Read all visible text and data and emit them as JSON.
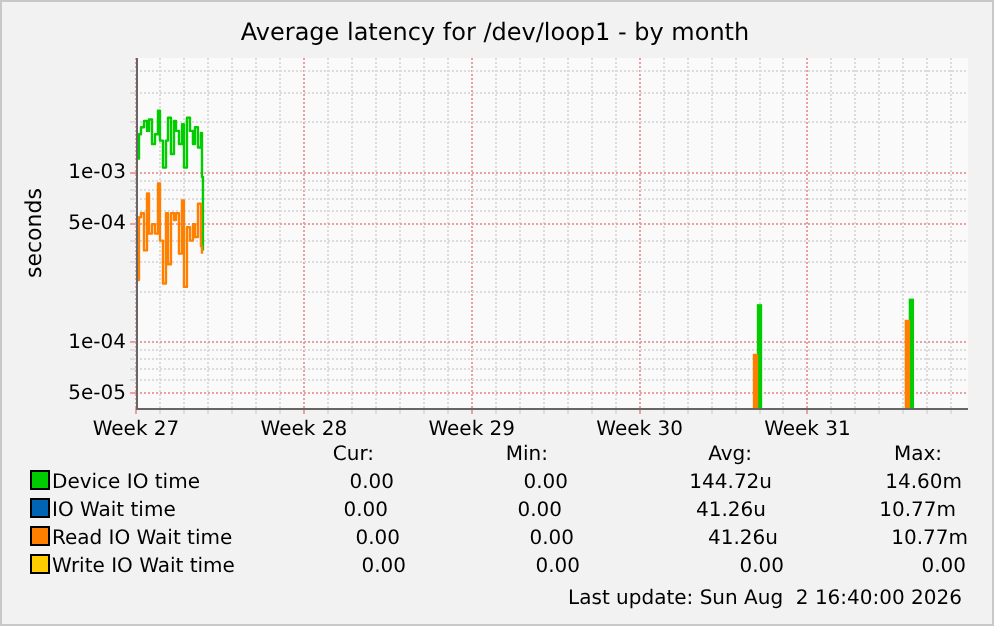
{
  "chart_data": {
    "type": "step",
    "title": "Average latency for /dev/loop1 - by month",
    "ylabel": "seconds",
    "log": "y",
    "xlim": [
      "2026-06-29T00:00",
      "2026-08-02T16:40"
    ],
    "xticks": [
      {
        "value": "2026-06-29",
        "label": "Week 27"
      },
      {
        "value": "2026-06-30",
        "label": null
      },
      {
        "value": "2026-07-01",
        "label": null
      },
      {
        "value": "2026-07-02",
        "label": null
      },
      {
        "value": "2026-07-03",
        "label": null
      },
      {
        "value": "2026-07-04",
        "label": null
      },
      {
        "value": "2026-07-05",
        "label": null
      },
      {
        "value": "2026-07-06",
        "label": "Week 28"
      },
      {
        "value": "2026-07-07",
        "label": null
      },
      {
        "value": "2026-07-08",
        "label": null
      },
      {
        "value": "2026-07-09",
        "label": null
      },
      {
        "value": "2026-07-10",
        "label": null
      },
      {
        "value": "2026-07-11",
        "label": null
      },
      {
        "value": "2026-07-12",
        "label": null
      },
      {
        "value": "2026-07-13",
        "label": "Week 29"
      },
      {
        "value": "2026-07-14",
        "label": null
      },
      {
        "value": "2026-07-15",
        "label": null
      },
      {
        "value": "2026-07-16",
        "label": null
      },
      {
        "value": "2026-07-17",
        "label": null
      },
      {
        "value": "2026-07-18",
        "label": null
      },
      {
        "value": "2026-07-19",
        "label": null
      },
      {
        "value": "2026-07-20",
        "label": "Week 30"
      },
      {
        "value": "2026-07-21",
        "label": null
      },
      {
        "value": "2026-07-22",
        "label": null
      },
      {
        "value": "2026-07-23",
        "label": null
      },
      {
        "value": "2026-07-24",
        "label": null
      },
      {
        "value": "2026-07-25",
        "label": null
      },
      {
        "value": "2026-07-26",
        "label": null
      },
      {
        "value": "2026-07-27",
        "label": "Week 31"
      },
      {
        "value": "2026-07-28",
        "label": null
      },
      {
        "value": "2026-07-29",
        "label": null
      },
      {
        "value": "2026-07-30",
        "label": null
      },
      {
        "value": "2026-07-31",
        "label": null
      },
      {
        "value": "2026-08-01",
        "label": null
      },
      {
        "value": "2026-08-02",
        "label": null
      }
    ],
    "ylim": [
      4.1e-05,
      0.0048
    ],
    "yticks": [
      {
        "value": 5e-05,
        "label": "5e-05"
      },
      {
        "value": 6e-05,
        "label": null
      },
      {
        "value": 7e-05,
        "label": null
      },
      {
        "value": 8e-05,
        "label": null
      },
      {
        "value": 9e-05,
        "label": null
      },
      {
        "value": 0.0001,
        "label": "1e-04"
      },
      {
        "value": 0.0002,
        "label": null
      },
      {
        "value": 0.0003,
        "label": null
      },
      {
        "value": 0.0004,
        "label": null
      },
      {
        "value": 0.0005,
        "label": "5e-04"
      },
      {
        "value": 0.0006,
        "label": null
      },
      {
        "value": 0.0007,
        "label": null
      },
      {
        "value": 0.0008,
        "label": null
      },
      {
        "value": 0.0009,
        "label": null
      },
      {
        "value": 0.001,
        "label": "1e-03"
      },
      {
        "value": 0.002,
        "label": null
      },
      {
        "value": 0.003,
        "label": null
      },
      {
        "value": 0.004,
        "label": null
      }
    ],
    "grid": true,
    "legend": "bottom",
    "x": [
      "2026-06-29T00:00",
      "2026-06-29T03:00",
      "2026-06-29T05:00",
      "2026-06-29T08:00",
      "2026-06-29T11:00",
      "2026-06-29T13:00",
      "2026-06-29T16:00",
      "2026-06-29T19:00",
      "2026-06-29T22:00",
      "2026-06-30T00:00",
      "2026-06-30T03:00",
      "2026-06-30T06:00",
      "2026-06-30T08:00",
      "2026-06-30T11:00",
      "2026-06-30T14:00",
      "2026-06-30T16:00",
      "2026-06-30T19:00",
      "2026-06-30T22:00",
      "2026-07-01T00:00",
      "2026-07-01T03:00",
      "2026-07-01T06:00",
      "2026-07-01T09:00",
      "2026-07-01T11:00",
      "2026-07-01T14:00",
      "2026-07-01T17:00",
      "2026-07-01T18:00",
      "2026-07-01T19:00"
    ],
    "series": [
      {
        "name": "Device IO time",
        "color": "#00cc00",
        "values": [
          0.00122,
          0.0017,
          0.00187,
          0.00204,
          0.00178,
          0.00208,
          0.00149,
          0.0017,
          0.00234,
          0.00156,
          0.00108,
          0.00156,
          0.00213,
          0.0013,
          0.00204,
          0.00178,
          0.00149,
          0.00195,
          0.00108,
          0.00213,
          0.00178,
          0.00149,
          0.00187,
          0.00142,
          0.00173,
          0.00095,
          0.00035
        ]
      },
      {
        "name": "IO Wait time",
        "color": "#0066b3",
        "values": [
          null,
          null,
          null,
          null,
          null,
          null,
          null,
          null,
          null,
          null,
          null,
          null,
          null,
          null,
          null,
          null,
          null,
          null,
          null,
          null,
          null,
          null,
          null,
          null,
          null,
          null,
          null
        ]
      },
      {
        "name": "Read IO Wait time",
        "color": "#ff8000",
        "values": [
          0.000234,
          0.00055,
          0.00058,
          0.00035,
          0.00076,
          0.00044,
          0.0005,
          0.00044,
          0.00087,
          0.0004,
          0.000223,
          0.00058,
          0.00029,
          0.00058,
          0.00053,
          0.00058,
          0.000335,
          0.00069,
          0.000213,
          0.00048,
          0.0004,
          0.0005,
          0.00042,
          0.00066,
          0.00037,
          0.000335,
          null
        ]
      },
      {
        "name": "Write IO Wait time",
        "color": "#ffcc00",
        "values": [
          null,
          null,
          null,
          null,
          null,
          null,
          null,
          null,
          null,
          null,
          null,
          null,
          null,
          null,
          null,
          null,
          null,
          null,
          null,
          null,
          null,
          null,
          null,
          null,
          null,
          null,
          null
        ]
      },
      {
        "type": "bar",
        "color": "#00cc00",
        "x": [
          "2026-07-24T22:00",
          "2026-07-31T06:00"
        ],
        "values": [
          0.000167,
          0.00018
        ]
      },
      {
        "type": "bar",
        "color": "#ff8000",
        "x": [
          "2026-07-24T22:00",
          "2026-07-31T06:00"
        ],
        "values": [
          8.5e-05,
          0.000135
        ]
      }
    ],
    "annotations": [
      "Cur:",
      "Min:",
      "Avg:",
      "Max:",
      "0.00",
      "0.00",
      "144.72u",
      "14.60m",
      "0.00",
      "0.00",
      "41.26u",
      "10.77m",
      "0.00",
      "0.00",
      "41.26u",
      "10.77m",
      "0.00",
      "0.00",
      "0.00",
      "0.00",
      "Last update: Sun Aug  2 16:40:00 2026"
    ]
  }
}
